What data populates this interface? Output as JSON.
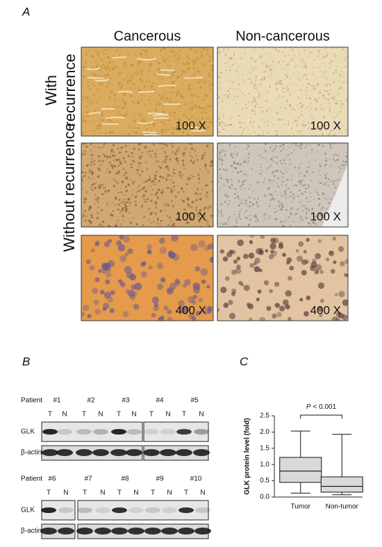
{
  "panel_a": {
    "label": "A",
    "columns": [
      "Cancerous",
      "Non-cancerous"
    ],
    "rows": [
      [
        "With",
        "recurrence"
      ],
      [
        "Without recurrence"
      ]
    ],
    "magnifications": [
      "100 X",
      "100 X",
      "100 X",
      "100 X",
      "400 X",
      "400 X"
    ]
  },
  "panel_b": {
    "label": "B",
    "row_labels": [
      "GLK",
      "β-actin"
    ],
    "blots": [
      {
        "patient_label": "Patient",
        "patients": [
          "#1",
          "#2",
          "#3",
          "#4",
          "#5"
        ],
        "lanes": [
          "T",
          "N",
          "T",
          "N",
          "T",
          "N",
          "T",
          "N",
          "T",
          "N"
        ]
      },
      {
        "patient_label": "Patient",
        "patients": [
          "#6",
          "#7",
          "#8",
          "#9",
          "#10"
        ],
        "lanes": [
          "T",
          "N",
          "T",
          "N",
          "T",
          "N",
          "T",
          "N",
          "T",
          "N"
        ]
      }
    ]
  },
  "chart_data": {
    "type": "box",
    "label": "C",
    "ylabel": "GLK protein level (fold)",
    "annotation": {
      "symbol": "P",
      "text": "< 0.001"
    },
    "categories": [
      "Tumor",
      "Non-tumor"
    ],
    "color": "#d9d9d9",
    "boxes": [
      {
        "min": 0.12,
        "q1": 0.45,
        "median": 0.8,
        "q3": 1.22,
        "max": 2.03
      },
      {
        "min": 0.07,
        "q1": 0.15,
        "median": 0.33,
        "q3": 0.62,
        "max": 1.93
      }
    ],
    "ylim": [
      0,
      2.5
    ],
    "yticks": [
      {
        "value": 0,
        "label": "0.0"
      },
      0.5,
      {
        "value": 1,
        "label": "1.0"
      },
      1.5,
      {
        "value": 2,
        "label": "2.0"
      },
      2.5
    ]
  }
}
